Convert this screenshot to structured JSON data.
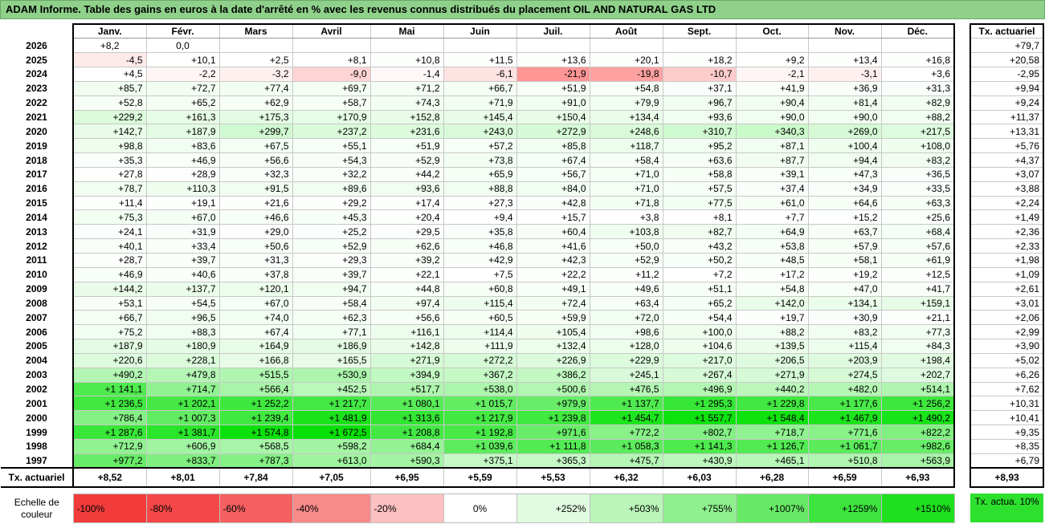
{
  "title": "ADAM Informe. Table des gains en euros à la date d'arrêté en % avec les revenus connus distribués du placement OIL AND NATURAL GAS LTD",
  "months": [
    "Janv.",
    "Févr.",
    "Mars",
    "Avril",
    "Mai",
    "Juin",
    "Juil.",
    "Août",
    "Sept.",
    "Oct.",
    "Nov.",
    "Déc."
  ],
  "side_header": "Tx. actuariel",
  "rows": [
    {
      "year": "2026",
      "values": [
        "+8,2",
        "0,0",
        "",
        "",
        "",
        "",
        "",
        "",
        "",
        "",
        "",
        ""
      ],
      "tx": "+79,7"
    },
    {
      "year": "2025",
      "values": [
        "-4,5",
        "+10,1",
        "+2,5",
        "+8,1",
        "+10,8",
        "+11,5",
        "+13,6",
        "+20,1",
        "+18,2",
        "+9,2",
        "+13,4",
        "+16,8"
      ],
      "tx": "+20,58"
    },
    {
      "year": "2024",
      "values": [
        "+4,5",
        "-2,2",
        "-3,2",
        "-9,0",
        "-1,4",
        "-6,1",
        "-21,9",
        "-19,8",
        "-10,7",
        "-2,1",
        "-3,1",
        "+3,6"
      ],
      "tx": "-2,95"
    },
    {
      "year": "2023",
      "values": [
        "+85,7",
        "+72,7",
        "+77,4",
        "+69,7",
        "+71,2",
        "+66,7",
        "+51,9",
        "+54,8",
        "+37,1",
        "+41,9",
        "+36,9",
        "+31,3"
      ],
      "tx": "+9,94"
    },
    {
      "year": "2022",
      "values": [
        "+52,8",
        "+65,2",
        "+62,9",
        "+58,7",
        "+74,3",
        "+71,9",
        "+91,0",
        "+79,9",
        "+96,7",
        "+90,4",
        "+81,4",
        "+82,9"
      ],
      "tx": "+9,24"
    },
    {
      "year": "2021",
      "values": [
        "+229,2",
        "+161,3",
        "+175,3",
        "+170,9",
        "+152,8",
        "+145,4",
        "+150,4",
        "+134,4",
        "+93,6",
        "+90,0",
        "+90,0",
        "+88,2"
      ],
      "tx": "+11,37"
    },
    {
      "year": "2020",
      "values": [
        "+142,7",
        "+187,9",
        "+299,7",
        "+237,2",
        "+231,6",
        "+243,0",
        "+272,9",
        "+248,6",
        "+310,7",
        "+340,3",
        "+269,0",
        "+217,5"
      ],
      "tx": "+13,31"
    },
    {
      "year": "2019",
      "values": [
        "+98,8",
        "+83,6",
        "+67,5",
        "+55,1",
        "+51,9",
        "+57,2",
        "+85,8",
        "+118,7",
        "+95,2",
        "+87,1",
        "+100,4",
        "+108,0"
      ],
      "tx": "+5,76"
    },
    {
      "year": "2018",
      "values": [
        "+35,3",
        "+46,9",
        "+56,6",
        "+54,3",
        "+52,9",
        "+73,8",
        "+67,4",
        "+58,4",
        "+63,6",
        "+87,7",
        "+94,4",
        "+83,2"
      ],
      "tx": "+4,37"
    },
    {
      "year": "2017",
      "values": [
        "+27,8",
        "+28,9",
        "+32,3",
        "+32,2",
        "+44,2",
        "+65,9",
        "+56,7",
        "+71,0",
        "+58,8",
        "+39,1",
        "+47,3",
        "+36,5"
      ],
      "tx": "+3,07"
    },
    {
      "year": "2016",
      "values": [
        "+78,7",
        "+110,3",
        "+91,5",
        "+89,6",
        "+93,6",
        "+88,8",
        "+84,0",
        "+71,0",
        "+57,5",
        "+37,4",
        "+34,9",
        "+33,5"
      ],
      "tx": "+3,88"
    },
    {
      "year": "2015",
      "values": [
        "+11,4",
        "+19,1",
        "+21,6",
        "+29,2",
        "+17,4",
        "+27,3",
        "+42,8",
        "+71,8",
        "+77,5",
        "+61,0",
        "+64,6",
        "+63,3"
      ],
      "tx": "+2,24"
    },
    {
      "year": "2014",
      "values": [
        "+75,3",
        "+67,0",
        "+46,6",
        "+45,3",
        "+20,4",
        "+9,4",
        "+15,7",
        "+3,8",
        "+8,1",
        "+7,7",
        "+15,2",
        "+25,6"
      ],
      "tx": "+1,49"
    },
    {
      "year": "2013",
      "values": [
        "+24,1",
        "+31,9",
        "+29,0",
        "+25,2",
        "+29,5",
        "+35,8",
        "+60,4",
        "+103,8",
        "+82,7",
        "+64,9",
        "+63,7",
        "+68,4"
      ],
      "tx": "+2,36"
    },
    {
      "year": "2012",
      "values": [
        "+40,1",
        "+33,4",
        "+50,6",
        "+52,9",
        "+62,6",
        "+46,8",
        "+41,6",
        "+50,0",
        "+43,2",
        "+53,8",
        "+57,9",
        "+57,6"
      ],
      "tx": "+2,33"
    },
    {
      "year": "2011",
      "values": [
        "+28,7",
        "+39,7",
        "+31,3",
        "+29,3",
        "+39,2",
        "+42,9",
        "+42,3",
        "+52,9",
        "+50,2",
        "+48,5",
        "+58,1",
        "+61,9"
      ],
      "tx": "+1,98"
    },
    {
      "year": "2010",
      "values": [
        "+46,9",
        "+40,6",
        "+37,8",
        "+39,7",
        "+22,1",
        "+7,5",
        "+22,2",
        "+11,2",
        "+7,2",
        "+17,2",
        "+19,2",
        "+12,5"
      ],
      "tx": "+1,09"
    },
    {
      "year": "2009",
      "values": [
        "+144,2",
        "+137,7",
        "+120,1",
        "+94,7",
        "+44,8",
        "+60,8",
        "+49,1",
        "+49,6",
        "+51,1",
        "+54,8",
        "+47,0",
        "+41,7"
      ],
      "tx": "+2,61"
    },
    {
      "year": "2008",
      "values": [
        "+53,1",
        "+54,5",
        "+67,0",
        "+58,4",
        "+97,4",
        "+115,4",
        "+72,4",
        "+63,4",
        "+65,2",
        "+142,0",
        "+134,1",
        "+159,1"
      ],
      "tx": "+3,01"
    },
    {
      "year": "2007",
      "values": [
        "+66,7",
        "+96,5",
        "+74,0",
        "+62,3",
        "+56,6",
        "+60,5",
        "+59,9",
        "+72,0",
        "+54,4",
        "+19,7",
        "+30,9",
        "+21,1"
      ],
      "tx": "+2,06"
    },
    {
      "year": "2006",
      "values": [
        "+75,2",
        "+88,3",
        "+67,4",
        "+77,1",
        "+116,1",
        "+114,4",
        "+105,4",
        "+98,6",
        "+100,0",
        "+88,2",
        "+83,2",
        "+77,3"
      ],
      "tx": "+2,99"
    },
    {
      "year": "2005",
      "values": [
        "+187,9",
        "+180,9",
        "+164,9",
        "+186,9",
        "+142,8",
        "+111,9",
        "+132,4",
        "+128,0",
        "+104,6",
        "+139,5",
        "+115,4",
        "+84,3"
      ],
      "tx": "+3,90"
    },
    {
      "year": "2004",
      "values": [
        "+220,6",
        "+228,1",
        "+166,8",
        "+165,5",
        "+271,9",
        "+272,2",
        "+226,9",
        "+229,9",
        "+217,0",
        "+206,5",
        "+203,9",
        "+198,4"
      ],
      "tx": "+5,02"
    },
    {
      "year": "2003",
      "values": [
        "+490,2",
        "+479,8",
        "+515,5",
        "+530,9",
        "+394,9",
        "+367,2",
        "+386,2",
        "+245,1",
        "+267,4",
        "+271,9",
        "+274,5",
        "+202,7"
      ],
      "tx": "+6,26"
    },
    {
      "year": "2002",
      "values": [
        "+1 141,1",
        "+714,7",
        "+566,4",
        "+452,5",
        "+517,7",
        "+538,0",
        "+500,6",
        "+476,5",
        "+496,9",
        "+440,2",
        "+482,0",
        "+514,1"
      ],
      "tx": "+7,62"
    },
    {
      "year": "2001",
      "values": [
        "+1 236,5",
        "+1 202,1",
        "+1 252,2",
        "+1 217,7",
        "+1 080,1",
        "+1 015,7",
        "+979,9",
        "+1 137,7",
        "+1 295,3",
        "+1 229,8",
        "+1 177,6",
        "+1 256,2"
      ],
      "tx": "+10,31"
    },
    {
      "year": "2000",
      "values": [
        "+786,4",
        "+1 007,3",
        "+1 239,4",
        "+1 481,9",
        "+1 313,6",
        "+1 217,9",
        "+1 239,8",
        "+1 454,7",
        "+1 557,7",
        "+1 548,4",
        "+1 467,9",
        "+1 490,2"
      ],
      "tx": "+10,41"
    },
    {
      "year": "1999",
      "values": [
        "+1 287,6",
        "+1 381,7",
        "+1 574,8",
        "+1 672,5",
        "+1 208,8",
        "+1 192,8",
        "+971,6",
        "+772,2",
        "+802,7",
        "+718,7",
        "+771,6",
        "+822,2"
      ],
      "tx": "+9,35"
    },
    {
      "year": "1998",
      "values": [
        "+712,9",
        "+606,9",
        "+568,5",
        "+598,2",
        "+684,4",
        "+1 039,6",
        "+1 111,8",
        "+1 058,3",
        "+1 141,3",
        "+1 126,7",
        "+1 061,7",
        "+982,6"
      ],
      "tx": "+8,35"
    },
    {
      "year": "1997",
      "values": [
        "+977,2",
        "+833,7",
        "+787,3",
        "+613,0",
        "+590,3",
        "+375,1",
        "+365,3",
        "+475,7",
        "+430,9",
        "+465,1",
        "+510,8",
        "+563,9"
      ],
      "tx": "+6,79"
    }
  ],
  "tx_row": {
    "label": "Tx. actuariel",
    "values": [
      "+8,52",
      "+8,01",
      "+7,84",
      "+7,05",
      "+6,95",
      "+5,59",
      "+5,53",
      "+6,32",
      "+6,03",
      "+6,28",
      "+6,59",
      "+6,93"
    ],
    "total": "+8,93"
  },
  "scale": {
    "label": "Echelle de couleur",
    "items": [
      {
        "text": "-100%",
        "color": "#f23c3c"
      },
      {
        "text": "-80%",
        "color": "#f44848"
      },
      {
        "text": "-60%",
        "color": "#f66060"
      },
      {
        "text": "-40%",
        "color": "#f88a8a"
      },
      {
        "text": "-20%",
        "color": "#fcc0c0"
      },
      {
        "text": "0%",
        "color": "#ffffff"
      },
      {
        "text": "+252%",
        "color": "#e0fbe0"
      },
      {
        "text": "+503%",
        "color": "#baf5ba"
      },
      {
        "text": "+755%",
        "color": "#8ef08e"
      },
      {
        "text": "+1007%",
        "color": "#66ea66"
      },
      {
        "text": "+1259%",
        "color": "#3ee43e"
      },
      {
        "text": "+1510%",
        "color": "#1ee01e"
      }
    ],
    "swatch_label": "Tx. actua. 10%",
    "swatch_color": "#2ee02e"
  }
}
